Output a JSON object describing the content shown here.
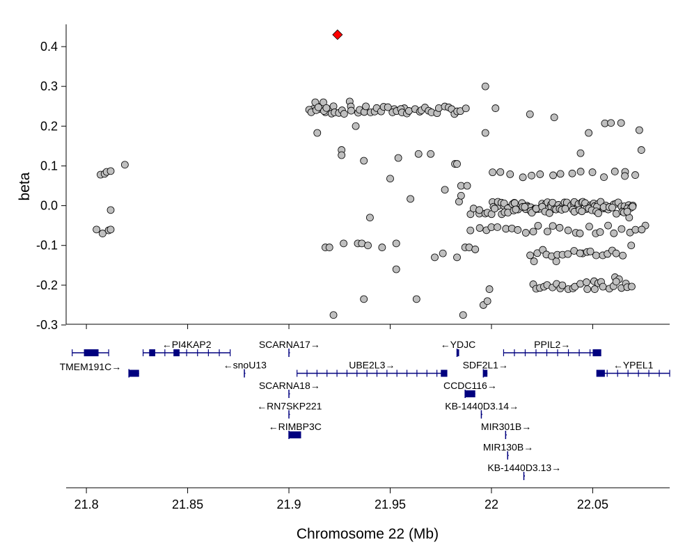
{
  "colors": {
    "point_fill": "#bfbfbf",
    "point_stroke": "#000000",
    "lead_fill": "#ff0000",
    "gene": "#00007f"
  },
  "chart_data": {
    "type": "scatter",
    "title": "",
    "xlabel": "Chromosome 22 (Mb)",
    "ylabel": "beta",
    "xlim": [
      21.79,
      22.088
    ],
    "ylim": [
      -0.3,
      0.45
    ],
    "x_ticks": [
      21.8,
      21.85,
      21.9,
      21.95,
      22.0,
      22.05
    ],
    "x_tick_labels": [
      "21.8",
      "21.85",
      "21.9",
      "21.95",
      "22",
      "22.05"
    ],
    "y_ticks": [
      -0.3,
      -0.2,
      -0.1,
      0.0,
      0.1,
      0.2,
      0.3,
      0.4
    ],
    "y_tick_labels": [
      "-0.3",
      "-0.2",
      "-0.1",
      "0.0",
      "0.1",
      "0.2",
      "0.3",
      "0.4"
    ],
    "lead_snp": {
      "x": 21.924,
      "y": 0.43
    },
    "points": [
      [
        21.805,
        -0.06
      ],
      [
        21.807,
        0.078
      ],
      [
        21.808,
        -0.07
      ],
      [
        21.809,
        0.08
      ],
      [
        21.81,
        0.085
      ],
      [
        21.811,
        -0.062
      ],
      [
        21.812,
        0.087
      ],
      [
        21.812,
        -0.06
      ],
      [
        21.812,
        -0.011
      ],
      [
        21.819,
        0.103
      ],
      [
        21.911,
        0.238
      ],
      [
        21.912,
        0.243
      ],
      [
        21.913,
        0.26
      ],
      [
        21.914,
        0.183
      ],
      [
        21.915,
        0.243
      ],
      [
        21.916,
        0.25
      ],
      [
        21.917,
        0.26
      ],
      [
        21.918,
        0.235
      ],
      [
        21.918,
        -0.105
      ],
      [
        21.92,
        -0.105
      ],
      [
        21.921,
        0.243
      ],
      [
        21.922,
        0.25
      ],
      [
        21.922,
        -0.275
      ],
      [
        21.926,
        0.14
      ],
      [
        21.926,
        0.127
      ],
      [
        21.927,
        -0.095
      ],
      [
        21.93,
        0.262
      ],
      [
        21.933,
        0.2
      ],
      [
        21.934,
        -0.095
      ],
      [
        21.936,
        -0.095
      ],
      [
        21.937,
        0.113
      ],
      [
        21.937,
        -0.235
      ],
      [
        21.939,
        -0.1
      ],
      [
        21.94,
        -0.03
      ],
      [
        21.946,
        -0.105
      ],
      [
        21.95,
        0.068
      ],
      [
        21.952,
        0.243
      ],
      [
        21.953,
        -0.16
      ],
      [
        21.953,
        -0.095
      ],
      [
        21.954,
        0.12
      ],
      [
        21.957,
        0.245
      ],
      [
        21.96,
        0.017
      ],
      [
        21.963,
        -0.235
      ],
      [
        21.964,
        0.13
      ],
      [
        21.97,
        0.13
      ],
      [
        21.972,
        -0.13
      ],
      [
        21.976,
        -0.12
      ],
      [
        21.977,
        0.04
      ],
      [
        21.982,
        0.105
      ],
      [
        21.983,
        0.105
      ],
      [
        21.983,
        -0.13
      ],
      [
        21.984,
        0.01
      ],
      [
        21.985,
        0.05
      ],
      [
        21.985,
        0.025
      ],
      [
        21.986,
        -0.275
      ],
      [
        21.987,
        -0.105
      ],
      [
        21.988,
        0.05
      ],
      [
        21.989,
        -0.105
      ],
      [
        21.992,
        -0.11
      ],
      [
        21.994,
        -0.02
      ],
      [
        21.996,
        -0.25
      ],
      [
        21.997,
        0.3
      ],
      [
        21.997,
        0.183
      ],
      [
        21.998,
        -0.24
      ],
      [
        21.999,
        -0.21
      ],
      [
        22.002,
        0.245
      ],
      [
        22.019,
        0.23
      ],
      [
        22.021,
        -0.14
      ],
      [
        22.031,
        0.222
      ],
      [
        22.032,
        -0.14
      ],
      [
        22.044,
        0.132
      ],
      [
        22.045,
        -0.12
      ],
      [
        22.048,
        0.183
      ],
      [
        22.051,
        -0.21
      ],
      [
        22.056,
        0.207
      ],
      [
        22.059,
        0.208
      ],
      [
        22.061,
        -0.18
      ],
      [
        22.063,
        -0.185
      ],
      [
        22.064,
        0.208
      ],
      [
        22.066,
        0.085
      ],
      [
        22.068,
        -0.03
      ],
      [
        22.069,
        -0.1
      ],
      [
        22.071,
        0.077
      ],
      [
        22.073,
        0.19
      ],
      [
        22.074,
        0.14
      ],
      [
        22.076,
        -0.05
      ]
    ],
    "plateaus": [
      {
        "x0": 21.91,
        "x1": 21.987,
        "y": 0.24,
        "n": 44
      },
      {
        "x0": 22.001,
        "x1": 22.07,
        "y": 0.0,
        "n": 70
      },
      {
        "x0": 21.99,
        "x1": 22.07,
        "y": -0.012,
        "n": 40
      },
      {
        "x0": 22.02,
        "x1": 22.07,
        "y": -0.2,
        "n": 26
      },
      {
        "x0": 22.02,
        "x1": 22.065,
        "y": -0.12,
        "n": 18
      },
      {
        "x0": 22.0,
        "x1": 22.065,
        "y": 0.08,
        "n": 14
      },
      {
        "x0": 21.99,
        "x1": 22.075,
        "y": -0.06,
        "n": 26
      }
    ],
    "genes": [
      {
        "label": "TMEM191C→",
        "start": 21.793,
        "end": 21.811,
        "row": 0,
        "label_row": "below",
        "exons": [
          [
            21.799,
            21.806
          ]
        ]
      },
      {
        "label": "←PI4KAP2",
        "start": 21.828,
        "end": 21.871,
        "row": 0,
        "label_row": "above",
        "exons": [
          [
            21.831,
            21.834
          ],
          [
            21.843,
            21.846
          ]
        ]
      },
      {
        "label": "TMEM191C→",
        "start": 21.821,
        "end": 21.826,
        "row": 1,
        "label_row": "none",
        "exons": [
          [
            21.821,
            21.826
          ]
        ]
      },
      {
        "label": "←snoU13",
        "start": 21.878,
        "end": 21.878,
        "row": 1,
        "label_row": "above",
        "exons": []
      },
      {
        "label": "SCARNA17→",
        "start": 21.9,
        "end": 21.9,
        "row": 0,
        "label_row": "above",
        "exons": []
      },
      {
        "label": "UBE2L3→",
        "start": 21.904,
        "end": 21.978,
        "row": 1,
        "label_row": "above",
        "exons": [
          [
            21.975,
            21.978
          ]
        ]
      },
      {
        "label": "SCARNA18→",
        "start": 21.9,
        "end": 21.9,
        "row": 2,
        "label_row": "above",
        "exons": []
      },
      {
        "label": "←RN7SKP221",
        "start": 21.9,
        "end": 21.9,
        "row": 3,
        "label_row": "above",
        "exons": []
      },
      {
        "label": "←RIMBP3C",
        "start": 21.9,
        "end": 21.906,
        "row": 4,
        "label_row": "above",
        "exons": [
          [
            21.9,
            21.906
          ]
        ]
      },
      {
        "label": "←YDJC",
        "start": 21.983,
        "end": 21.984,
        "row": 0,
        "label_row": "above",
        "exons": [
          [
            21.983,
            21.984
          ]
        ]
      },
      {
        "label": "PPIL2→",
        "start": 22.006,
        "end": 22.054,
        "row": 0,
        "label_row": "above",
        "exons": [
          [
            22.05,
            22.054
          ]
        ]
      },
      {
        "label": "SDF2L1→",
        "start": 21.996,
        "end": 21.998,
        "row": 1,
        "label_row": "above",
        "exons": [
          [
            21.996,
            21.998
          ]
        ]
      },
      {
        "label": "←YPEL1",
        "start": 22.052,
        "end": 22.088,
        "row": 1,
        "label_row": "above",
        "exons": [
          [
            22.052,
            22.056
          ]
        ]
      },
      {
        "label": "CCDC116→",
        "start": 21.987,
        "end": 21.992,
        "row": 2,
        "label_row": "above",
        "exons": [
          [
            21.987,
            21.992
          ]
        ]
      },
      {
        "label": "KB-1440D3.14→",
        "start": 21.995,
        "end": 21.995,
        "row": 3,
        "label_row": "above",
        "exons": []
      },
      {
        "label": "MIR301B→",
        "start": 22.007,
        "end": 22.007,
        "row": 4,
        "label_row": "above",
        "exons": []
      },
      {
        "label": "MIR130B→",
        "start": 22.008,
        "end": 22.008,
        "row": 5,
        "label_row": "above",
        "exons": []
      },
      {
        "label": "KB-1440D3.13→",
        "start": 22.016,
        "end": 22.016,
        "row": 6,
        "label_row": "above",
        "exons": []
      }
    ]
  }
}
